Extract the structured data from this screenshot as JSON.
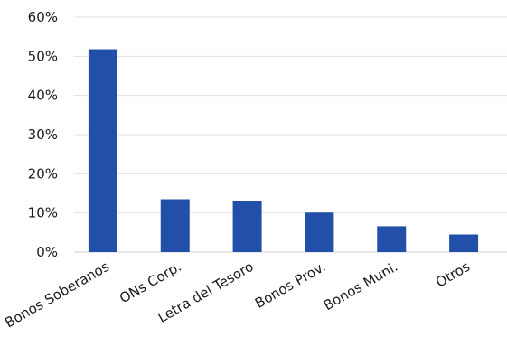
{
  "chart_data": {
    "type": "bar",
    "categories": [
      "Bonos Soberanos",
      "ONs Corp.",
      "Letra del Tesoro",
      "Bonos Prov.",
      "Bonos Muni.",
      "Otros"
    ],
    "values": [
      51.8,
      13.5,
      13.1,
      10.1,
      6.6,
      4.5
    ],
    "ylim": [
      0,
      60
    ],
    "yticks": [
      0,
      10,
      20,
      30,
      40,
      50,
      60
    ],
    "ytick_labels": [
      "0%",
      "10%",
      "20%",
      "30%",
      "40%",
      "50%",
      "60%"
    ],
    "grid": true,
    "bar_color": "#2250a8",
    "title": "",
    "xlabel": "",
    "ylabel": ""
  }
}
